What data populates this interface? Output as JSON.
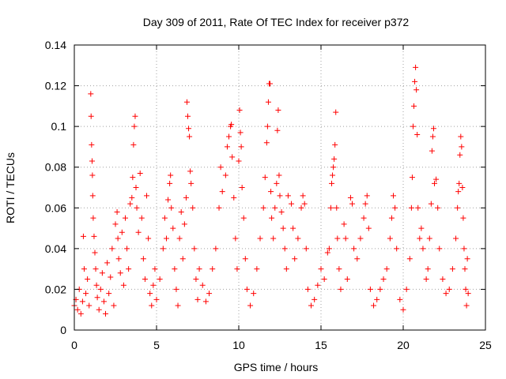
{
  "chart_data": {
    "type": "scatter",
    "title": "Day 309 of 2011, Rate Of TEC Index for receiver p372",
    "xlabel": "GPS time / hours",
    "ylabel": "ROTI / TECUs",
    "xlim": [
      0,
      25
    ],
    "ylim": [
      0,
      0.14
    ],
    "xticks": [
      0,
      5,
      10,
      15,
      20,
      25
    ],
    "xtick_labels": [
      "0",
      "5",
      "10",
      "15",
      "20",
      "25"
    ],
    "yticks": [
      0,
      0.02,
      0.04,
      0.06,
      0.08,
      0.1,
      0.12,
      0.14
    ],
    "ytick_labels": [
      "0",
      "0.02",
      "0.04",
      "0.06",
      "0.08",
      "0.1",
      "0.12",
      "0.14"
    ],
    "grid": true,
    "marker": "+",
    "color": "#ff0000",
    "series": [
      {
        "points": [
          [
            0.0,
            0.012
          ],
          [
            0.1,
            0.015
          ],
          [
            0.2,
            0.01
          ],
          [
            0.3,
            0.02
          ],
          [
            0.4,
            0.008
          ],
          [
            0.5,
            0.014
          ],
          [
            0.55,
            0.046
          ],
          [
            0.6,
            0.03
          ],
          [
            0.7,
            0.018
          ],
          [
            0.8,
            0.025
          ],
          [
            0.9,
            0.012
          ],
          [
            1.0,
            0.116
          ],
          [
            1.02,
            0.105
          ],
          [
            1.05,
            0.091
          ],
          [
            1.08,
            0.083
          ],
          [
            1.1,
            0.076
          ],
          [
            1.12,
            0.066
          ],
          [
            1.15,
            0.055
          ],
          [
            1.2,
            0.046
          ],
          [
            1.25,
            0.038
          ],
          [
            1.3,
            0.03
          ],
          [
            1.35,
            0.022
          ],
          [
            1.4,
            0.016
          ],
          [
            1.5,
            0.01
          ],
          [
            1.6,
            0.02
          ],
          [
            1.7,
            0.028
          ],
          [
            1.8,
            0.014
          ],
          [
            1.9,
            0.008
          ],
          [
            2.0,
            0.033
          ],
          [
            2.1,
            0.018
          ],
          [
            2.2,
            0.026
          ],
          [
            2.3,
            0.04
          ],
          [
            2.4,
            0.012
          ],
          [
            2.5,
            0.052
          ],
          [
            2.6,
            0.058
          ],
          [
            2.65,
            0.045
          ],
          [
            2.7,
            0.035
          ],
          [
            2.8,
            0.028
          ],
          [
            2.9,
            0.048
          ],
          [
            3.0,
            0.022
          ],
          [
            3.1,
            0.055
          ],
          [
            3.2,
            0.04
          ],
          [
            3.3,
            0.03
          ],
          [
            3.4,
            0.062
          ],
          [
            3.5,
            0.065
          ],
          [
            3.55,
            0.075
          ],
          [
            3.6,
            0.091
          ],
          [
            3.65,
            0.1
          ],
          [
            3.7,
            0.105
          ],
          [
            3.75,
            0.07
          ],
          [
            3.8,
            0.06
          ],
          [
            3.9,
            0.048
          ],
          [
            4.0,
            0.077
          ],
          [
            4.1,
            0.055
          ],
          [
            4.2,
            0.035
          ],
          [
            4.3,
            0.025
          ],
          [
            4.4,
            0.066
          ],
          [
            4.5,
            0.045
          ],
          [
            4.6,
            0.018
          ],
          [
            4.7,
            0.012
          ],
          [
            4.8,
            0.022
          ],
          [
            4.9,
            0.03
          ],
          [
            5.0,
            0.015
          ],
          [
            5.2,
            0.025
          ],
          [
            5.4,
            0.04
          ],
          [
            5.5,
            0.055
          ],
          [
            5.6,
            0.045
          ],
          [
            5.7,
            0.064
          ],
          [
            5.8,
            0.072
          ],
          [
            5.85,
            0.076
          ],
          [
            5.9,
            0.06
          ],
          [
            6.0,
            0.05
          ],
          [
            6.1,
            0.03
          ],
          [
            6.2,
            0.02
          ],
          [
            6.3,
            0.012
          ],
          [
            6.4,
            0.045
          ],
          [
            6.5,
            0.058
          ],
          [
            6.6,
            0.035
          ],
          [
            6.7,
            0.052
          ],
          [
            6.8,
            0.065
          ],
          [
            6.85,
            0.112
          ],
          [
            6.9,
            0.105
          ],
          [
            6.95,
            0.099
          ],
          [
            7.0,
            0.095
          ],
          [
            7.05,
            0.078
          ],
          [
            7.1,
            0.072
          ],
          [
            7.2,
            0.06
          ],
          [
            7.3,
            0.04
          ],
          [
            7.4,
            0.025
          ],
          [
            7.5,
            0.015
          ],
          [
            7.6,
            0.03
          ],
          [
            7.8,
            0.022
          ],
          [
            8.0,
            0.014
          ],
          [
            8.2,
            0.018
          ],
          [
            8.4,
            0.03
          ],
          [
            8.6,
            0.04
          ],
          [
            8.8,
            0.06
          ],
          [
            8.9,
            0.08
          ],
          [
            9.0,
            0.068
          ],
          [
            9.2,
            0.076
          ],
          [
            9.3,
            0.09
          ],
          [
            9.4,
            0.095
          ],
          [
            9.5,
            0.1
          ],
          [
            9.55,
            0.101
          ],
          [
            9.6,
            0.085
          ],
          [
            9.7,
            0.065
          ],
          [
            9.8,
            0.045
          ],
          [
            9.9,
            0.03
          ],
          [
            10.0,
            0.083
          ],
          [
            10.05,
            0.108
          ],
          [
            10.1,
            0.097
          ],
          [
            10.15,
            0.09
          ],
          [
            10.2,
            0.07
          ],
          [
            10.3,
            0.055
          ],
          [
            10.4,
            0.035
          ],
          [
            10.5,
            0.02
          ],
          [
            10.7,
            0.012
          ],
          [
            10.9,
            0.018
          ],
          [
            11.1,
            0.03
          ],
          [
            11.3,
            0.045
          ],
          [
            11.5,
            0.06
          ],
          [
            11.6,
            0.075
          ],
          [
            11.7,
            0.092
          ],
          [
            11.75,
            0.1
          ],
          [
            11.8,
            0.112
          ],
          [
            11.85,
            0.121
          ],
          [
            11.9,
            0.121
          ],
          [
            11.95,
            0.068
          ],
          [
            12.0,
            0.055
          ],
          [
            12.1,
            0.045
          ],
          [
            12.2,
            0.06
          ],
          [
            12.3,
            0.072
          ],
          [
            12.35,
            0.098
          ],
          [
            12.4,
            0.108
          ],
          [
            12.45,
            0.076
          ],
          [
            12.5,
            0.066
          ],
          [
            12.6,
            0.058
          ],
          [
            12.7,
            0.05
          ],
          [
            12.8,
            0.04
          ],
          [
            12.9,
            0.03
          ],
          [
            13.0,
            0.066
          ],
          [
            13.2,
            0.062
          ],
          [
            13.3,
            0.05
          ],
          [
            13.4,
            0.035
          ],
          [
            13.6,
            0.045
          ],
          [
            13.8,
            0.06
          ],
          [
            13.9,
            0.066
          ],
          [
            14.0,
            0.062
          ],
          [
            14.1,
            0.04
          ],
          [
            14.2,
            0.02
          ],
          [
            14.4,
            0.012
          ],
          [
            14.6,
            0.015
          ],
          [
            14.8,
            0.022
          ],
          [
            15.0,
            0.03
          ],
          [
            15.2,
            0.025
          ],
          [
            15.4,
            0.038
          ],
          [
            15.5,
            0.04
          ],
          [
            15.6,
            0.06
          ],
          [
            15.65,
            0.072
          ],
          [
            15.7,
            0.076
          ],
          [
            15.75,
            0.08
          ],
          [
            15.8,
            0.084
          ],
          [
            15.85,
            0.091
          ],
          [
            15.9,
            0.107
          ],
          [
            15.95,
            0.06
          ],
          [
            16.0,
            0.045
          ],
          [
            16.1,
            0.03
          ],
          [
            16.2,
            0.02
          ],
          [
            16.4,
            0.052
          ],
          [
            16.5,
            0.045
          ],
          [
            16.6,
            0.025
          ],
          [
            16.8,
            0.065
          ],
          [
            16.9,
            0.062
          ],
          [
            17.0,
            0.04
          ],
          [
            17.2,
            0.035
          ],
          [
            17.4,
            0.045
          ],
          [
            17.6,
            0.055
          ],
          [
            17.7,
            0.062
          ],
          [
            17.8,
            0.066
          ],
          [
            17.9,
            0.05
          ],
          [
            18.0,
            0.02
          ],
          [
            18.2,
            0.012
          ],
          [
            18.4,
            0.015
          ],
          [
            18.6,
            0.02
          ],
          [
            18.8,
            0.025
          ],
          [
            19.0,
            0.03
          ],
          [
            19.2,
            0.045
          ],
          [
            19.3,
            0.055
          ],
          [
            19.4,
            0.066
          ],
          [
            19.5,
            0.06
          ],
          [
            19.6,
            0.04
          ],
          [
            19.8,
            0.015
          ],
          [
            20.0,
            0.01
          ],
          [
            20.2,
            0.02
          ],
          [
            20.4,
            0.035
          ],
          [
            20.5,
            0.06
          ],
          [
            20.55,
            0.075
          ],
          [
            20.6,
            0.1
          ],
          [
            20.65,
            0.11
          ],
          [
            20.7,
            0.122
          ],
          [
            20.75,
            0.129
          ],
          [
            20.8,
            0.118
          ],
          [
            20.85,
            0.096
          ],
          [
            20.9,
            0.06
          ],
          [
            21.0,
            0.045
          ],
          [
            21.1,
            0.05
          ],
          [
            21.2,
            0.04
          ],
          [
            21.4,
            0.025
          ],
          [
            21.5,
            0.03
          ],
          [
            21.6,
            0.045
          ],
          [
            21.7,
            0.062
          ],
          [
            21.75,
            0.088
          ],
          [
            21.8,
            0.095
          ],
          [
            21.85,
            0.099
          ],
          [
            21.9,
            0.072
          ],
          [
            22.0,
            0.074
          ],
          [
            22.1,
            0.06
          ],
          [
            22.2,
            0.04
          ],
          [
            22.4,
            0.025
          ],
          [
            22.6,
            0.018
          ],
          [
            22.8,
            0.02
          ],
          [
            23.0,
            0.03
          ],
          [
            23.2,
            0.045
          ],
          [
            23.3,
            0.06
          ],
          [
            23.35,
            0.068
          ],
          [
            23.4,
            0.072
          ],
          [
            23.45,
            0.086
          ],
          [
            23.5,
            0.095
          ],
          [
            23.55,
            0.09
          ],
          [
            23.6,
            0.07
          ],
          [
            23.65,
            0.055
          ],
          [
            23.7,
            0.04
          ],
          [
            23.75,
            0.03
          ],
          [
            23.8,
            0.02
          ],
          [
            23.85,
            0.012
          ],
          [
            23.9,
            0.035
          ],
          [
            23.95,
            0.018
          ]
        ]
      }
    ]
  }
}
